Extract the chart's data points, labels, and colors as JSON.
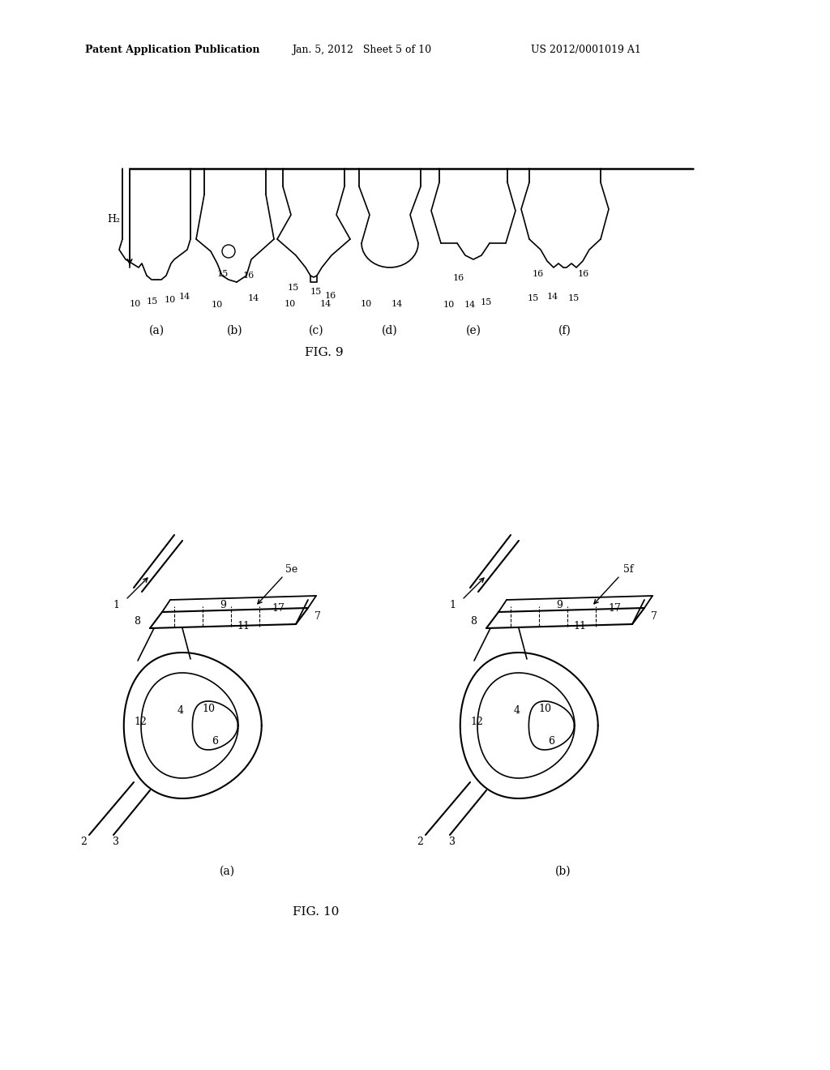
{
  "bg_color": "#ffffff",
  "text_color": "#000000",
  "line_color": "#000000",
  "header_left": "Patent Application Publication",
  "header_center": "Jan. 5, 2012   Sheet 5 of 10",
  "header_right": "US 2012/0001019 A1",
  "fig9_label": "FIG. 9",
  "fig10_label": "FIG. 10",
  "fig9_sub": [
    "(a)",
    "(b)",
    "(c)",
    "(d)",
    "(e)",
    "(f)"
  ],
  "fig10_sub": [
    "(a)",
    "(b)"
  ]
}
